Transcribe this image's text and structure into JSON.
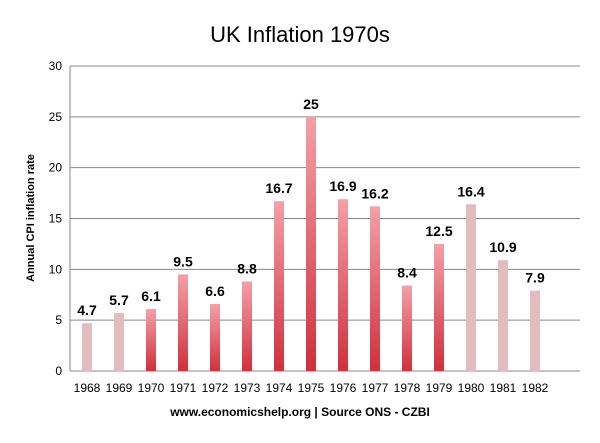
{
  "chart_data": {
    "type": "bar",
    "title": "UK Inflation 1970s",
    "xlabel": "www.economicshelp.org | Source ONS - CZBI",
    "ylabel": "Annual CPI inflation rate",
    "ylim": [
      0,
      30
    ],
    "yticks": [
      0,
      5,
      10,
      15,
      20,
      25,
      30
    ],
    "grid": true,
    "categories": [
      "1968",
      "1969",
      "1970",
      "1971",
      "1972",
      "1973",
      "1974",
      "1975",
      "1976",
      "1977",
      "1978",
      "1979",
      "1980",
      "1981",
      "1982"
    ],
    "values": [
      4.7,
      5.7,
      6.1,
      9.5,
      6.6,
      8.8,
      16.7,
      25,
      16.9,
      16.2,
      8.4,
      12.5,
      16.4,
      10.9,
      7.9
    ],
    "data_labels": [
      "4.7",
      "5.7",
      "6.1",
      "9.5",
      "6.6",
      "8.8",
      "16.7",
      "25",
      "16.9",
      "16.2",
      "8.4",
      "12.5",
      "16.4",
      "10.9",
      "7.9"
    ],
    "highlight": [
      false,
      false,
      true,
      true,
      true,
      true,
      true,
      true,
      true,
      true,
      true,
      true,
      false,
      false,
      false
    ],
    "colors": {
      "highlight_top": "#f4a0a8",
      "highlight_bottom": "#d0303c",
      "muted": "#e3bcc0",
      "grid": "#888888"
    }
  }
}
